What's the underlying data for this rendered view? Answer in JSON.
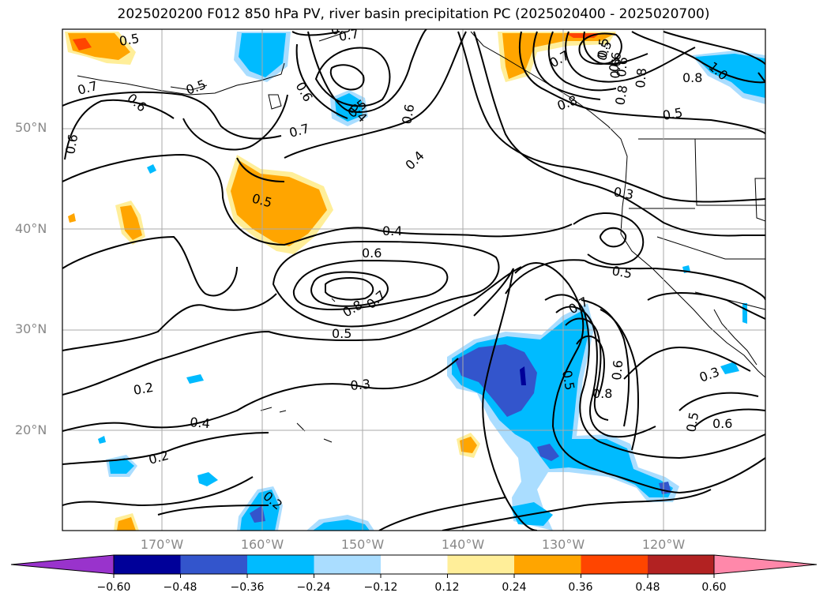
{
  "title": "2025020200 F012 850 hPa PV, river basin precipitation PC (2025020400 - 2025020700)",
  "lat_labels": [
    "50°N",
    "40°N",
    "30°N",
    "20°N"
  ],
  "lon_labels": [
    "170°W",
    "160°W",
    "150°W",
    "140°W",
    "130°W",
    "120°W"
  ],
  "colorbar": {
    "ticks": [
      "−0.60",
      "−0.48",
      "−0.36",
      "−0.24",
      "−0.12",
      "0.12",
      "0.24",
      "0.36",
      "0.48",
      "0.60"
    ],
    "colors": [
      "#9933cc",
      "#000099",
      "#3355cc",
      "#00bbff",
      "#aaddff",
      "#ffffff",
      "#ffee99",
      "#ffa500",
      "#ff4500",
      "#b22222",
      "#ff88aa"
    ]
  },
  "contour_labels": [
    "0.5",
    "0.7",
    "0.6",
    "0.5",
    "0.6",
    "0.7",
    "0.4",
    "0.5",
    "0.6",
    "0.7",
    "0.6",
    "0.4",
    "0.5",
    "0.3",
    "0.4",
    "0.6",
    "0.8",
    "0.7",
    "0.5",
    "0.5",
    "0.7",
    "0.5",
    "0.6",
    "0.8",
    "0.3",
    "0.2",
    "0.4",
    "0.2",
    "0.2",
    "0.3",
    "0.6",
    "0.5",
    "0.7",
    "0.5",
    "0.8",
    "0.5",
    "0.6",
    "0.5",
    "0.8",
    "0.6",
    "0.8",
    "1.0",
    "0.8",
    "0.6",
    "0.3"
  ]
}
